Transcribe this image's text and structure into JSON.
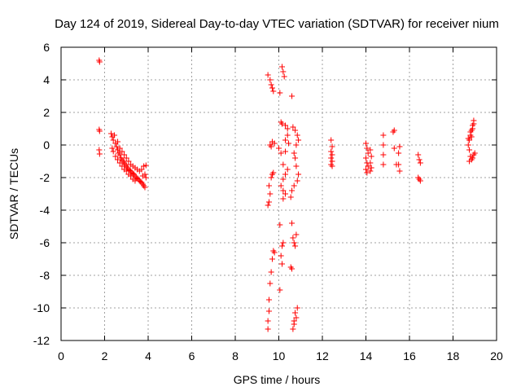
{
  "chart_data": {
    "type": "scatter",
    "title": "Day 124 of 2019, Sidereal Day-to-day VTEC variation (SDTVAR) for receiver nium",
    "xlabel": "GPS time / hours",
    "ylabel": "SDTVAR / TECUs",
    "xlim": [
      0,
      20
    ],
    "ylim": [
      -12,
      6
    ],
    "xticks": [
      0,
      2,
      4,
      6,
      8,
      10,
      12,
      14,
      16,
      18,
      20
    ],
    "yticks": [
      -12,
      -10,
      -8,
      -6,
      -4,
      -2,
      0,
      2,
      4,
      6
    ],
    "grid": true,
    "marker": "+",
    "color": "#ff0000",
    "series": [
      {
        "name": "SDTVAR",
        "points": [
          [
            1.75,
            5.2
          ],
          [
            1.77,
            5.1
          ],
          [
            1.75,
            0.95
          ],
          [
            1.77,
            0.85
          ],
          [
            1.75,
            -0.3
          ],
          [
            1.77,
            -0.55
          ],
          [
            2.3,
            0.7
          ],
          [
            2.35,
            0.5
          ],
          [
            2.4,
            0.3
          ],
          [
            2.45,
            0.6
          ],
          [
            2.5,
            0.1
          ],
          [
            2.35,
            -0.2
          ],
          [
            2.4,
            -0.4
          ],
          [
            2.55,
            -0.1
          ],
          [
            2.6,
            -0.3
          ],
          [
            2.65,
            -0.5
          ],
          [
            2.7,
            -0.6
          ],
          [
            2.75,
            -0.8
          ],
          [
            2.8,
            -0.9
          ],
          [
            2.85,
            -1.0
          ],
          [
            2.9,
            -1.1
          ],
          [
            2.95,
            -1.2
          ],
          [
            3.0,
            -1.3
          ],
          [
            3.05,
            -1.4
          ],
          [
            3.1,
            -1.5
          ],
          [
            3.15,
            -1.55
          ],
          [
            3.2,
            -1.6
          ],
          [
            3.25,
            -1.7
          ],
          [
            3.3,
            -1.75
          ],
          [
            3.35,
            -1.8
          ],
          [
            3.4,
            -1.9
          ],
          [
            3.45,
            -2.0
          ],
          [
            3.5,
            -2.05
          ],
          [
            3.55,
            -2.1
          ],
          [
            3.6,
            -2.2
          ],
          [
            3.65,
            -2.25
          ],
          [
            3.7,
            -2.3
          ],
          [
            3.75,
            -2.4
          ],
          [
            3.8,
            -2.5
          ],
          [
            3.85,
            -2.6
          ],
          [
            2.6,
            0.2
          ],
          [
            2.7,
            -0.2
          ],
          [
            2.8,
            -0.4
          ],
          [
            2.9,
            -0.6
          ],
          [
            3.0,
            -0.8
          ],
          [
            3.1,
            -1.0
          ],
          [
            3.2,
            -1.2
          ],
          [
            3.3,
            -1.3
          ],
          [
            3.4,
            -1.4
          ],
          [
            3.5,
            -1.5
          ],
          [
            3.6,
            -1.6
          ],
          [
            3.7,
            -1.5
          ],
          [
            3.8,
            -1.3
          ],
          [
            3.9,
            -1.25
          ],
          [
            3.9,
            -2.0
          ],
          [
            3.85,
            -1.8
          ],
          [
            3.75,
            -1.9
          ],
          [
            2.5,
            -0.7
          ],
          [
            2.6,
            -0.9
          ],
          [
            2.7,
            -1.1
          ],
          [
            2.8,
            -1.3
          ],
          [
            2.9,
            -1.5
          ],
          [
            3.0,
            -1.6
          ],
          [
            3.1,
            -1.8
          ],
          [
            3.2,
            -1.9
          ],
          [
            3.3,
            -2.1
          ],
          [
            3.4,
            -2.2
          ],
          [
            9.5,
            4.3
          ],
          [
            9.6,
            4.0
          ],
          [
            9.65,
            3.7
          ],
          [
            9.7,
            3.5
          ],
          [
            9.75,
            3.3
          ],
          [
            9.6,
            0.0
          ],
          [
            9.7,
            0.2
          ],
          [
            9.8,
            0.1
          ],
          [
            9.65,
            -0.1
          ],
          [
            9.55,
            -2.5
          ],
          [
            9.6,
            -3.0
          ],
          [
            9.55,
            -3.5
          ],
          [
            9.5,
            -3.7
          ],
          [
            9.65,
            -2.0
          ],
          [
            9.7,
            -1.8
          ],
          [
            9.75,
            -1.7
          ],
          [
            9.75,
            -6.5
          ],
          [
            9.7,
            -7.0
          ],
          [
            9.65,
            -7.8
          ],
          [
            9.6,
            -8.5
          ],
          [
            9.55,
            -9.5
          ],
          [
            9.55,
            -10.2
          ],
          [
            9.5,
            -10.8
          ],
          [
            9.5,
            -11.3
          ],
          [
            9.8,
            -6.6
          ],
          [
            10.05,
            3.2
          ],
          [
            10.15,
            4.8
          ],
          [
            10.2,
            4.5
          ],
          [
            10.25,
            4.2
          ],
          [
            10.1,
            1.4
          ],
          [
            10.15,
            1.3
          ],
          [
            10.3,
            1.2
          ],
          [
            10.4,
            1.0
          ],
          [
            10.3,
            0.3
          ],
          [
            10.4,
            0.6
          ],
          [
            10.45,
            0.1
          ],
          [
            10.0,
            -0.2
          ],
          [
            10.1,
            -0.5
          ],
          [
            10.3,
            -0.4
          ],
          [
            10.2,
            -1.2
          ],
          [
            10.4,
            -1.5
          ],
          [
            10.3,
            -1.8
          ],
          [
            10.2,
            -2.1
          ],
          [
            10.1,
            -2.5
          ],
          [
            10.2,
            -2.8
          ],
          [
            10.3,
            -3.0
          ],
          [
            10.2,
            -3.3
          ],
          [
            10.05,
            -4.9
          ],
          [
            10.2,
            -6.0
          ],
          [
            10.15,
            -6.2
          ],
          [
            10.1,
            -6.8
          ],
          [
            10.15,
            -7.3
          ],
          [
            10.05,
            -8.9
          ],
          [
            10.6,
            3.0
          ],
          [
            10.65,
            1.1
          ],
          [
            10.75,
            0.9
          ],
          [
            10.85,
            0.6
          ],
          [
            10.9,
            0.3
          ],
          [
            10.8,
            0.0
          ],
          [
            10.7,
            -0.5
          ],
          [
            10.75,
            -0.8
          ],
          [
            10.8,
            -1.3
          ],
          [
            10.9,
            -1.8
          ],
          [
            10.85,
            -2.2
          ],
          [
            10.7,
            -2.5
          ],
          [
            10.6,
            -2.8
          ],
          [
            10.55,
            -3.2
          ],
          [
            10.6,
            -4.8
          ],
          [
            10.65,
            -5.7
          ],
          [
            10.7,
            -6.0
          ],
          [
            10.8,
            -5.5
          ],
          [
            10.75,
            -6.2
          ],
          [
            10.55,
            -7.5
          ],
          [
            10.6,
            -7.6
          ],
          [
            10.75,
            -10.3
          ],
          [
            10.7,
            -10.8
          ],
          [
            10.65,
            -11.3
          ],
          [
            10.85,
            -10.0
          ],
          [
            10.8,
            -10.6
          ],
          [
            10.7,
            -11.0
          ],
          [
            12.4,
            0.3
          ],
          [
            12.45,
            -0.1
          ],
          [
            12.4,
            -0.4
          ],
          [
            12.45,
            -0.6
          ],
          [
            12.4,
            -0.8
          ],
          [
            12.45,
            -1.0
          ],
          [
            12.4,
            -1.2
          ],
          [
            12.45,
            -1.3
          ],
          [
            14.0,
            0.1
          ],
          [
            14.05,
            -0.2
          ],
          [
            14.1,
            -0.5
          ],
          [
            14.0,
            -0.8
          ],
          [
            14.05,
            -1.1
          ],
          [
            14.1,
            -1.3
          ],
          [
            14.0,
            -1.5
          ],
          [
            14.05,
            -1.7
          ],
          [
            14.2,
            -0.3
          ],
          [
            14.25,
            -0.7
          ],
          [
            14.2,
            -1.1
          ],
          [
            14.25,
            -1.4
          ],
          [
            14.2,
            -1.6
          ],
          [
            14.8,
            0.6
          ],
          [
            14.8,
            0.0
          ],
          [
            14.8,
            -0.6
          ],
          [
            14.8,
            -1.2
          ],
          [
            15.3,
            0.9
          ],
          [
            15.25,
            0.8
          ],
          [
            15.3,
            -0.2
          ],
          [
            15.5,
            -0.5
          ],
          [
            15.55,
            -0.1
          ],
          [
            15.4,
            -1.2
          ],
          [
            15.55,
            -1.6
          ],
          [
            15.5,
            -1.2
          ],
          [
            16.4,
            -0.6
          ],
          [
            16.45,
            -0.9
          ],
          [
            16.5,
            -1.1
          ],
          [
            16.4,
            -2.0
          ],
          [
            16.45,
            -2.1
          ],
          [
            16.5,
            -2.2
          ],
          [
            18.7,
            0.0
          ],
          [
            18.75,
            0.3
          ],
          [
            18.8,
            0.6
          ],
          [
            18.85,
            0.9
          ],
          [
            18.9,
            1.2
          ],
          [
            18.95,
            1.5
          ],
          [
            18.75,
            -0.3
          ],
          [
            18.8,
            0.8
          ],
          [
            18.85,
            0.5
          ],
          [
            18.9,
            1.0
          ],
          [
            18.7,
            0.4
          ],
          [
            18.95,
            1.3
          ],
          [
            18.8,
            -0.7
          ],
          [
            18.85,
            -0.9
          ],
          [
            18.9,
            -0.8
          ],
          [
            18.95,
            -0.6
          ],
          [
            19.0,
            -0.5
          ],
          [
            18.75,
            -1.0
          ]
        ]
      }
    ]
  }
}
